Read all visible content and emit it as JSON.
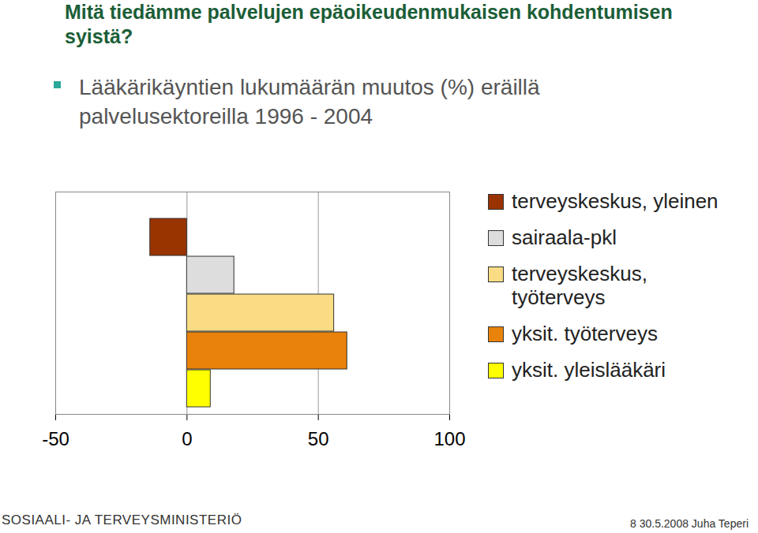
{
  "chart_data": {
    "type": "bar",
    "title": "Mitä tiedämme palvelujen epäoikeudenmukaisen kohdentumisen syistä?",
    "subtitle": "Lääkärikäyntien lukumäärän muutos (%) eräillä palvelusektoreilla 1996 - 2004",
    "categories": [
      "terveyskeskus, yleinen",
      "sairaala-pkl",
      "terveyskeskus, työterveys",
      "yksit. työterveys",
      "yksit. yleislääkäri"
    ],
    "values": [
      -14,
      18,
      56,
      61,
      9
    ],
    "colors": [
      "#993300",
      "#dddddd",
      "#f9dc84",
      "#e8820a",
      "#ffff00"
    ],
    "orientation": "horizontal",
    "xlim": [
      -50,
      100
    ],
    "xticks": [
      -50,
      0,
      50,
      100
    ],
    "grid": true,
    "legend": "right",
    "tick_labels": "x",
    "annotations": [
      "SOSIAALI- JA TERVEYSMINISTERIÖ",
      "8",
      "30.5.2008",
      "Juha Teperi"
    ]
  }
}
